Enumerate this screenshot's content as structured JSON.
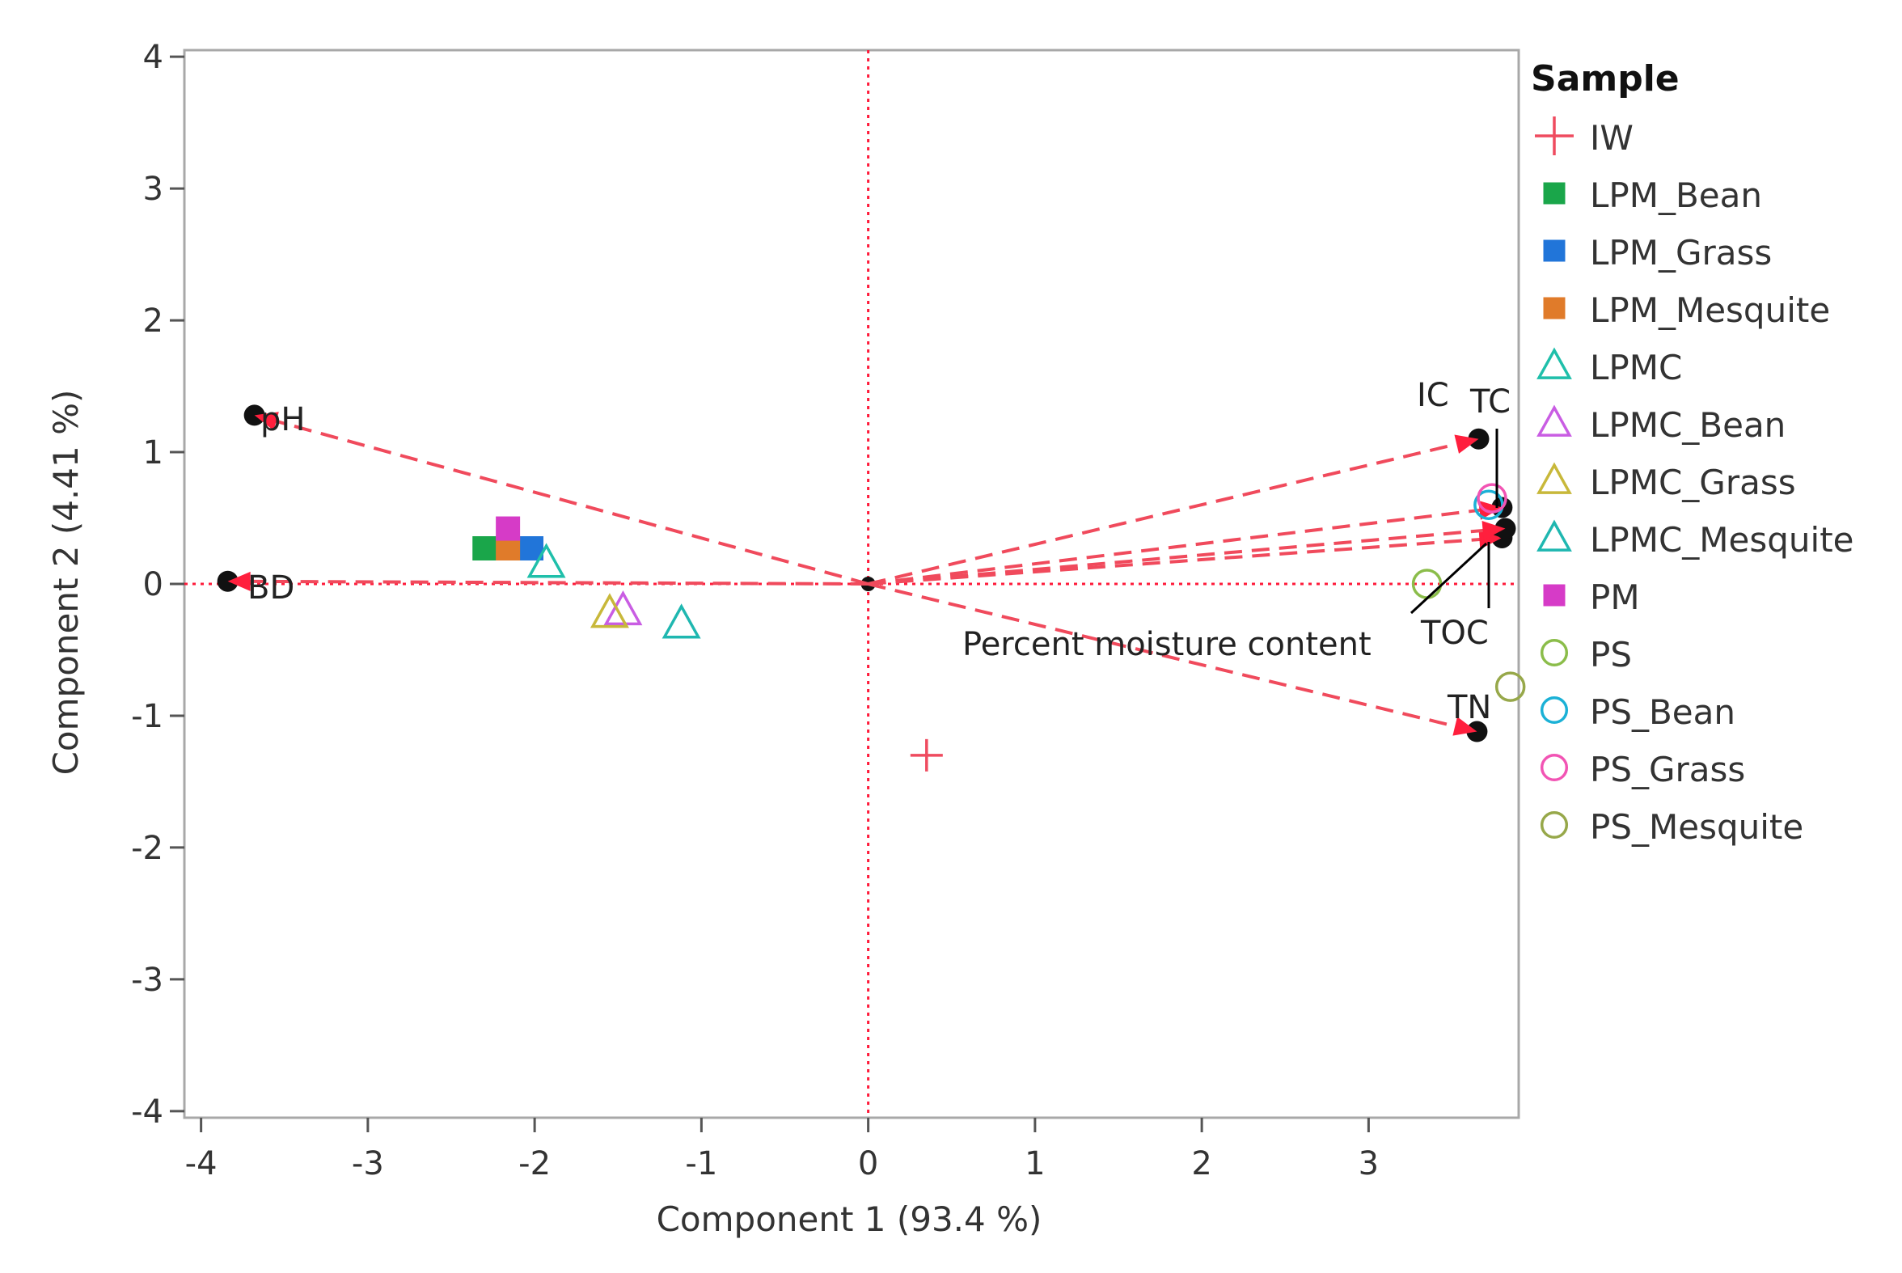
{
  "chart_data": {
    "type": "scatter",
    "xlabel": "Component 1  (93.4 %)",
    "ylabel": "Component 2  (4.41 %)",
    "xlim": [
      -4.1,
      3.9
    ],
    "ylim": [
      -4.05,
      4.05
    ],
    "xticks": [
      -4,
      -3,
      -2,
      -1,
      0,
      1,
      2,
      3
    ],
    "yticks": [
      -4,
      -3,
      -2,
      -1,
      0,
      1,
      2,
      3,
      4
    ],
    "grid": false,
    "legend": {
      "title": "Sample",
      "placement": "right",
      "entries": [
        {
          "name": "IW",
          "marker": "plus",
          "color": "#ef4b5f"
        },
        {
          "name": "LPM_Bean",
          "marker": "square",
          "color": "#1aa64a"
        },
        {
          "name": "LPM_Grass",
          "marker": "square",
          "color": "#2175d9"
        },
        {
          "name": "LPM_Mesquite",
          "marker": "square",
          "color": "#e07b2a"
        },
        {
          "name": "LPMC",
          "marker": "triangle",
          "color": "#1fbfaa"
        },
        {
          "name": "LPMC_Bean",
          "marker": "triangle",
          "color": "#c95de3"
        },
        {
          "name": "LPMC_Grass",
          "marker": "triangle",
          "color": "#c8b83a"
        },
        {
          "name": "LPMC_Mesquite",
          "marker": "triangle",
          "color": "#1fb7b0"
        },
        {
          "name": "PM",
          "marker": "square",
          "color": "#d63bc7"
        },
        {
          "name": "PS",
          "marker": "circle",
          "color": "#8bbd4a"
        },
        {
          "name": "PS_Bean",
          "marker": "circle",
          "color": "#1bb1d6"
        },
        {
          "name": "PS_Grass",
          "marker": "circle",
          "color": "#f254b4"
        },
        {
          "name": "PS_Mesquite",
          "marker": "circle",
          "color": "#97a84a"
        }
      ]
    },
    "points": [
      {
        "sample": "IW",
        "x": 0.35,
        "y": -1.3
      },
      {
        "sample": "LPM_Bean",
        "x": -2.3,
        "y": 0.27
      },
      {
        "sample": "LPM_Grass",
        "x": -2.02,
        "y": 0.27
      },
      {
        "sample": "LPM_Mesquite",
        "x": -2.16,
        "y": 0.27
      },
      {
        "sample": "LPMC",
        "x": -1.93,
        "y": 0.16
      },
      {
        "sample": "LPMC_Bean",
        "x": -1.47,
        "y": -0.2
      },
      {
        "sample": "LPMC_Grass",
        "x": -1.55,
        "y": -0.22
      },
      {
        "sample": "LPMC_Mesquite",
        "x": -1.12,
        "y": -0.3
      },
      {
        "sample": "PM",
        "x": -2.16,
        "y": 0.42
      },
      {
        "sample": "PS",
        "x": 3.35,
        "y": 0.0
      },
      {
        "sample": "PS_Bean",
        "x": 3.72,
        "y": 0.6
      },
      {
        "sample": "PS_Grass",
        "x": 3.74,
        "y": 0.65
      },
      {
        "sample": "PS_Mesquite",
        "x": 3.85,
        "y": -0.78
      }
    ],
    "loadings": [
      {
        "name": "pH",
        "x": -3.68,
        "y": 1.28
      },
      {
        "name": "BD",
        "x": -3.84,
        "y": 0.02
      },
      {
        "name": "IC",
        "x": 3.66,
        "y": 1.1
      },
      {
        "name": "TC",
        "x": 3.8,
        "y": 0.58
      },
      {
        "name": "TOC",
        "x": 3.8,
        "y": 0.35
      },
      {
        "name": "Percent moisture content",
        "x": 3.82,
        "y": 0.42
      },
      {
        "name": "TN",
        "x": 3.65,
        "y": -1.12
      }
    ]
  }
}
